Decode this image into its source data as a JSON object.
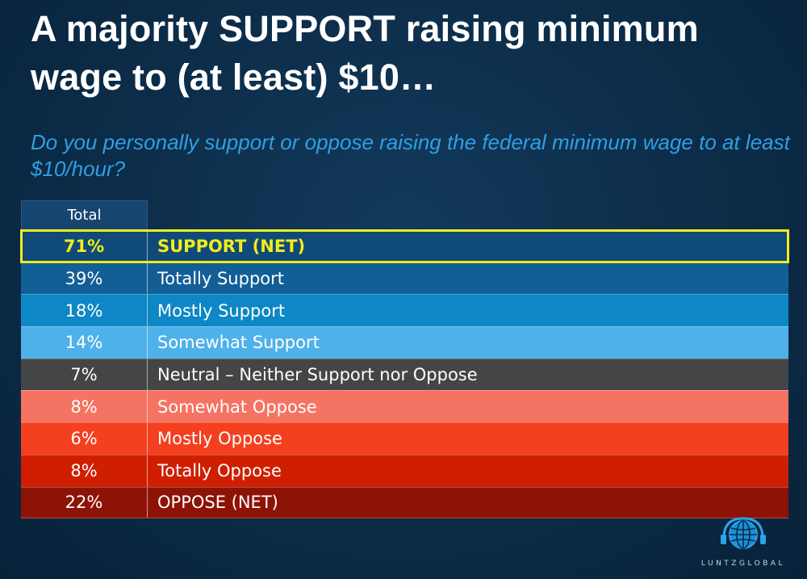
{
  "title": "A majority SUPPORT raising minimum wage to (at least) $10…",
  "question": "Do you personally support or oppose raising the federal minimum wage to at least $10/hour?",
  "chart_data": {
    "type": "table",
    "column_header": "Total",
    "rows": [
      {
        "value": "71%",
        "label": "SUPPORT (NET)",
        "color": "#0f4a78"
      },
      {
        "value": "39%",
        "label": "Totally Support",
        "color": "#125f97"
      },
      {
        "value": "18%",
        "label": "Mostly Support",
        "color": "#0d87c6"
      },
      {
        "value": "14%",
        "label": "Somewhat Support",
        "color": "#4fb1ea"
      },
      {
        "value": "7%",
        "label": "Neutral – Neither Support nor Oppose",
        "color": "#444547"
      },
      {
        "value": "8%",
        "label": "Somewhat Oppose",
        "color": "#f57362"
      },
      {
        "value": "6%",
        "label": "Mostly Oppose",
        "color": "#f4401f"
      },
      {
        "value": "8%",
        "label": "Totally Oppose",
        "color": "#cf1f00"
      },
      {
        "value": "22%",
        "label": "OPPOSE (NET)",
        "color": "#8e1307"
      }
    ],
    "highlight_color": "#f3ec1d"
  },
  "logo": {
    "text": "LUNTZGLOBAL",
    "icon": "globe-headset-icon"
  }
}
